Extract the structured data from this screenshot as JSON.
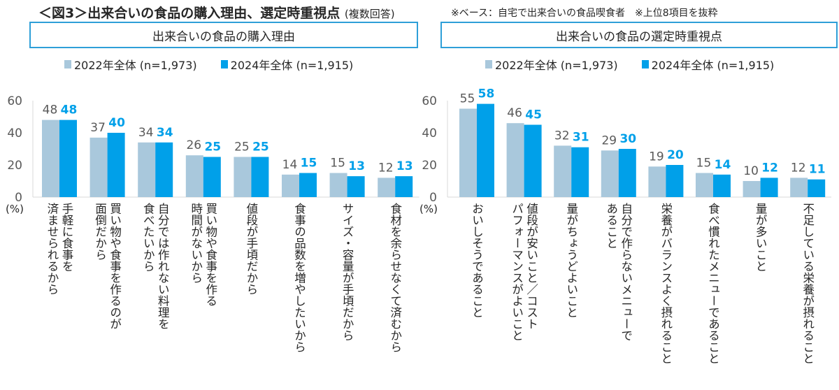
{
  "title": "＜図3＞出来合いの食品の購入理由、選定時重視点",
  "title_note": "(複数回答)",
  "base_note": "※ベース：自宅で出来合いの食品喫食者　※上位8項目を抜粋",
  "chart_data": [
    {
      "type": "bar",
      "title": "出来合いの食品の購入理由",
      "ylabel": "(%)",
      "ylim": [
        0,
        60
      ],
      "yticks": [
        "0",
        "20",
        "40",
        "60"
      ],
      "grid": false,
      "legend": "top",
      "colors": {
        "2022": "#a9c8dc",
        "2024": "#00a0e9"
      },
      "categories": [
        [
          "手軽に食事を",
          "済ませられるから"
        ],
        [
          "買い物や食事を作るのが",
          "面倒だから"
        ],
        [
          "自分では作れない料理を",
          "食べたいから"
        ],
        [
          "買い物や食事を作る",
          "時間がないから"
        ],
        [
          "値段が手頃だから"
        ],
        [
          "食事の品数を増やしたいから"
        ],
        [
          "サイズ・容量が手頃だから"
        ],
        [
          "食材を余らせなくて済むから"
        ]
      ],
      "series": [
        {
          "name": "2022年全体 (n=1,973)",
          "values": [
            48,
            37,
            34,
            26,
            25,
            14,
            15,
            12
          ]
        },
        {
          "name": "2024年全体 (n=1,915)",
          "values": [
            48,
            40,
            34,
            25,
            25,
            15,
            13,
            13
          ]
        }
      ]
    },
    {
      "type": "bar",
      "title": "出来合いの食品の選定時重視点",
      "ylabel": "(%)",
      "ylim": [
        0,
        60
      ],
      "yticks": [
        "0",
        "20",
        "40",
        "60"
      ],
      "grid": false,
      "legend": "top",
      "colors": {
        "2022": "#a9c8dc",
        "2024": "#00a0e9"
      },
      "categories": [
        [
          "おいしそうであること"
        ],
        [
          "値段が安いこと／コスト",
          "パフォーマンスがよいこと"
        ],
        [
          "量がちょうどよいこと"
        ],
        [
          "自分で作らないメニューで",
          "あること"
        ],
        [
          "栄養がバランスよく摂れること"
        ],
        [
          "食べ慣れたメニューであること"
        ],
        [
          "量が多いこと"
        ],
        [
          "不足している栄養が摂れること"
        ]
      ],
      "series": [
        {
          "name": "2022年全体 (n=1,973)",
          "values": [
            55,
            46,
            32,
            29,
            19,
            15,
            10,
            12
          ]
        },
        {
          "name": "2024年全体 (n=1,915)",
          "values": [
            58,
            45,
            31,
            30,
            20,
            14,
            12,
            11
          ]
        }
      ]
    }
  ]
}
